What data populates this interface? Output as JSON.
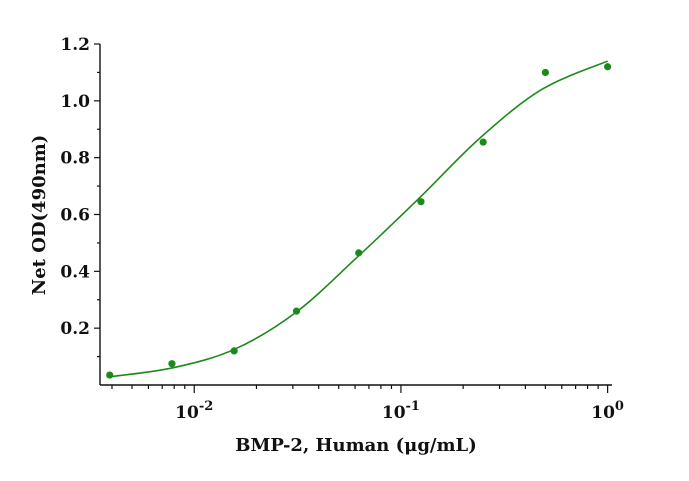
{
  "chart_data": {
    "type": "scatter",
    "xlabel": "BMP-2, Human (μg/mL)",
    "ylabel": "Net OD(490nm)",
    "xscale": "log",
    "xlim": [
      0.0035,
      1.05
    ],
    "ylim": [
      0.0,
      1.2
    ],
    "grid": false,
    "legend": "none",
    "color": "#1a8a1a",
    "x_ticks": [
      {
        "value": 0.01,
        "base": "10",
        "exp": "-2"
      },
      {
        "value": 0.1,
        "base": "10",
        "exp": "-1"
      },
      {
        "value": 1,
        "base": "10",
        "exp": "0"
      }
    ],
    "y_ticks": [
      {
        "value": 0.2,
        "label": "0.2"
      },
      {
        "value": 0.4,
        "label": "0.4"
      },
      {
        "value": 0.6,
        "label": "0.6"
      },
      {
        "value": 0.8,
        "label": "0.8"
      },
      {
        "value": 1.0,
        "label": "1.0"
      },
      {
        "value": 1.2,
        "label": "1.2"
      }
    ],
    "series": [
      {
        "points": [
          {
            "x": 0.0039,
            "y": 0.035
          },
          {
            "x": 0.0078,
            "y": 0.075
          },
          {
            "x": 0.0156,
            "y": 0.12
          },
          {
            "x": 0.03125,
            "y": 0.26
          },
          {
            "x": 0.0625,
            "y": 0.465
          },
          {
            "x": 0.125,
            "y": 0.645
          },
          {
            "x": 0.25,
            "y": 0.855
          },
          {
            "x": 0.5,
            "y": 1.1
          },
          {
            "x": 1.0,
            "y": 1.12
          }
        ]
      }
    ],
    "fit_curve": [
      {
        "x": 0.004,
        "y": 0.03
      },
      {
        "x": 0.00793,
        "y": 0.061
      },
      {
        "x": 0.0157,
        "y": 0.126
      },
      {
        "x": 0.0311,
        "y": 0.256
      },
      {
        "x": 0.0617,
        "y": 0.451
      },
      {
        "x": 0.122,
        "y": 0.656
      },
      {
        "x": 0.242,
        "y": 0.87
      },
      {
        "x": 0.48,
        "y": 1.04
      },
      {
        "x": 1.0,
        "y": 1.14
      }
    ]
  }
}
